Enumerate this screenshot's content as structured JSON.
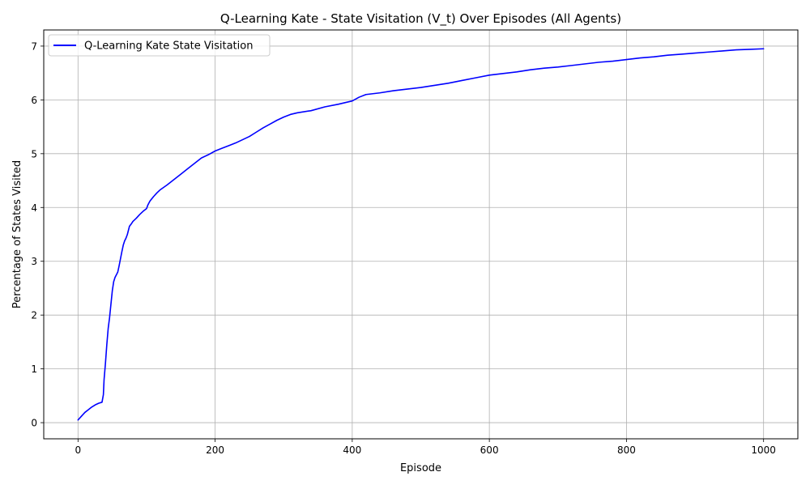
{
  "chart_data": {
    "type": "line",
    "title": "Q-Learning Kate - State Visitation (V_t) Over Episodes (All Agents)",
    "xlabel": "Episode",
    "ylabel": "Percentage of States Visited",
    "xlim": [
      -50,
      1050
    ],
    "ylim": [
      -0.3,
      7.3
    ],
    "xticks": [
      0,
      200,
      400,
      600,
      800,
      1000
    ],
    "yticks": [
      0,
      1,
      2,
      3,
      4,
      5,
      6,
      7
    ],
    "grid": true,
    "legend_position": "top-left",
    "series": [
      {
        "name": "Q-Learning Kate State Visitation",
        "color": "#0000ff",
        "x": [
          0,
          5,
          10,
          15,
          20,
          25,
          30,
          35,
          37,
          38,
          40,
          42,
          44,
          46,
          48,
          50,
          52,
          54,
          56,
          58,
          60,
          62,
          64,
          66,
          68,
          70,
          72,
          75,
          78,
          80,
          85,
          90,
          95,
          100,
          102,
          105,
          110,
          115,
          120,
          130,
          140,
          150,
          160,
          170,
          180,
          190,
          200,
          210,
          220,
          230,
          240,
          250,
          260,
          270,
          280,
          290,
          300,
          310,
          320,
          340,
          360,
          380,
          400,
          410,
          420,
          440,
          460,
          480,
          500,
          520,
          540,
          560,
          580,
          600,
          620,
          640,
          660,
          680,
          700,
          720,
          740,
          760,
          780,
          800,
          820,
          840,
          860,
          880,
          900,
          920,
          940,
          960,
          980,
          1000
        ],
        "values": [
          0.05,
          0.12,
          0.19,
          0.24,
          0.29,
          0.33,
          0.36,
          0.38,
          0.52,
          0.8,
          1.1,
          1.45,
          1.75,
          1.95,
          2.2,
          2.45,
          2.62,
          2.7,
          2.75,
          2.8,
          2.92,
          3.05,
          3.18,
          3.3,
          3.38,
          3.43,
          3.5,
          3.65,
          3.7,
          3.74,
          3.8,
          3.87,
          3.93,
          3.98,
          4.05,
          4.12,
          4.2,
          4.27,
          4.33,
          4.42,
          4.52,
          4.62,
          4.72,
          4.82,
          4.92,
          4.98,
          5.05,
          5.1,
          5.15,
          5.2,
          5.26,
          5.32,
          5.4,
          5.48,
          5.55,
          5.62,
          5.68,
          5.73,
          5.76,
          5.8,
          5.87,
          5.92,
          5.98,
          6.05,
          6.1,
          6.13,
          6.17,
          6.2,
          6.23,
          6.27,
          6.31,
          6.36,
          6.41,
          6.46,
          6.49,
          6.52,
          6.56,
          6.59,
          6.61,
          6.64,
          6.67,
          6.7,
          6.72,
          6.75,
          6.78,
          6.8,
          6.83,
          6.85,
          6.87,
          6.89,
          6.91,
          6.93,
          6.94,
          6.95
        ]
      }
    ]
  }
}
